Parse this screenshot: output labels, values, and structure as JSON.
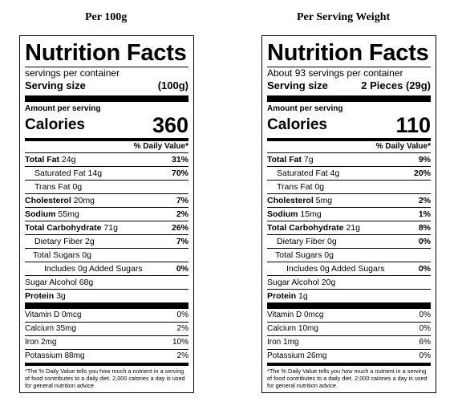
{
  "panels": [
    {
      "heading": "Per 100g",
      "title": "Nutrition Facts",
      "servings_per_container": "servings per container",
      "serving_size_label": "Serving size",
      "serving_size_value": "(100g)",
      "amount_per_serving": "Amount per serving",
      "calories_label": "Calories",
      "calories_value": "360",
      "daily_value_header": "% Daily Value*",
      "rows": {
        "total_fat": {
          "label": "Total Fat",
          "amount": " 24g",
          "dv": "31%"
        },
        "saturated_fat": {
          "label": "Saturated Fat 14g",
          "dv": "70%"
        },
        "trans_fat": {
          "label": "Trans Fat 0g"
        },
        "cholesterol": {
          "label": "Cholesterol",
          "amount": " 20mg",
          "dv": "7%"
        },
        "sodium": {
          "label": "Sodium",
          "amount": " 55mg",
          "dv": "2%"
        },
        "total_carb": {
          "label": "Total Carbohydrate",
          "amount": " 71g",
          "dv": "26%"
        },
        "dietary_fiber": {
          "label": "Dietary Fiber 2g",
          "dv": "7%"
        },
        "total_sugars": {
          "label": "Total Sugars 0g"
        },
        "added_sugars": {
          "label": "Includes 0g Added Sugars",
          "dv": "0%"
        },
        "sugar_alcohol": {
          "label": "Sugar Alcohol 68g"
        },
        "protein": {
          "label": "Protein",
          "amount": " 3g"
        },
        "vitamin_d": {
          "label": "Vitamin D 0mcg",
          "dv": "0%"
        },
        "calcium": {
          "label": "Calcium 35mg",
          "dv": "2%"
        },
        "iron": {
          "label": "Iron 2mg",
          "dv": "10%"
        },
        "potassium": {
          "label": "Potassium 88mg",
          "dv": "2%"
        }
      },
      "footnote": "*The % Daily Value tells you how much a nutrient in a serving of food contributes to a daily diet. 2,000 calories a day is used for general nutrition advice."
    },
    {
      "heading": "Per Serving Weight",
      "title": "Nutrition Facts",
      "servings_per_container": "About 93 servings per container",
      "serving_size_label": "Serving size",
      "serving_size_value": "2 Pieces (29g)",
      "amount_per_serving": "Amount per serving",
      "calories_label": "Calories",
      "calories_value": "110",
      "daily_value_header": "% Daily Value*",
      "rows": {
        "total_fat": {
          "label": "Total Fat",
          "amount": " 7g",
          "dv": "9%"
        },
        "saturated_fat": {
          "label": "Saturated Fat 4g",
          "dv": "20%"
        },
        "trans_fat": {
          "label": "Trans Fat 0g"
        },
        "cholesterol": {
          "label": "Cholesterol",
          "amount": " 5mg",
          "dv": "2%"
        },
        "sodium": {
          "label": "Sodium",
          "amount": " 15mg",
          "dv": "1%"
        },
        "total_carb": {
          "label": "Total Carbohydrate",
          "amount": " 21g",
          "dv": "8%"
        },
        "dietary_fiber": {
          "label": "Dietary Fiber 0g",
          "dv": "0%"
        },
        "total_sugars": {
          "label": "Total Sugars 0g"
        },
        "added_sugars": {
          "label": "Includes 0g Added Sugars",
          "dv": "0%"
        },
        "sugar_alcohol": {
          "label": "Sugar Alcohol 20g"
        },
        "protein": {
          "label": "Protein",
          "amount": " 1g"
        },
        "vitamin_d": {
          "label": "Vitamin D 0mcg",
          "dv": "0%"
        },
        "calcium": {
          "label": "Calcium 10mg",
          "dv": "0%"
        },
        "iron": {
          "label": "Iron 1mg",
          "dv": "6%"
        },
        "potassium": {
          "label": "Potassium 26mg",
          "dv": "0%"
        }
      },
      "footnote": "*The % Daily Value tells you how much a nutrient in a serving of food contributes to a daily diet. 2,000 calories a day is used for general nutrition advice."
    }
  ]
}
